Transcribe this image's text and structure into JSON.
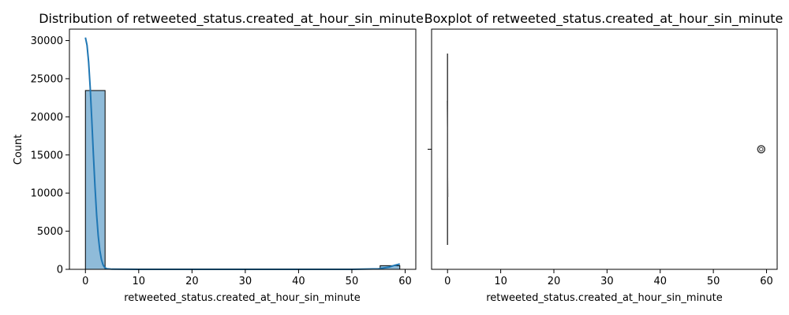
{
  "chart_data": [
    {
      "type": "bar",
      "title": "Distribution of retweeted_status.created_at_hour_sin_minute",
      "xlabel": "retweeted_status.created_at_hour_sin_minute",
      "ylabel": "Count",
      "xlim": [
        -3,
        62
      ],
      "ylim": [
        0,
        31500
      ],
      "xticks": [
        0,
        10,
        20,
        30,
        40,
        50,
        60
      ],
      "yticks": [
        0,
        5000,
        10000,
        15000,
        20000,
        25000,
        30000
      ],
      "grid": false,
      "bins": [
        {
          "x0": 0.0,
          "x1": 3.69,
          "count": 23450
        },
        {
          "x0": 3.69,
          "x1": 7.38,
          "count": 0
        },
        {
          "x0": 7.38,
          "x1": 11.06,
          "count": 0
        },
        {
          "x0": 11.06,
          "x1": 14.75,
          "count": 0
        },
        {
          "x0": 14.75,
          "x1": 18.44,
          "count": 0
        },
        {
          "x0": 18.44,
          "x1": 22.13,
          "count": 0
        },
        {
          "x0": 22.13,
          "x1": 25.81,
          "count": 0
        },
        {
          "x0": 25.81,
          "x1": 29.5,
          "count": 0
        },
        {
          "x0": 29.5,
          "x1": 33.19,
          "count": 0
        },
        {
          "x0": 33.19,
          "x1": 36.88,
          "count": 0
        },
        {
          "x0": 36.88,
          "x1": 40.56,
          "count": 0
        },
        {
          "x0": 40.56,
          "x1": 44.25,
          "count": 0
        },
        {
          "x0": 44.25,
          "x1": 47.94,
          "count": 0
        },
        {
          "x0": 47.94,
          "x1": 51.63,
          "count": 0
        },
        {
          "x0": 51.63,
          "x1": 55.31,
          "count": 0
        },
        {
          "x0": 55.31,
          "x1": 59.0,
          "count": 480
        }
      ],
      "kde": {
        "x": [
          0,
          0.3,
          0.6,
          0.9,
          1.2,
          1.5,
          1.8,
          2.1,
          2.4,
          2.7,
          3.0,
          3.3,
          3.6,
          4.0,
          5.0,
          10,
          20,
          30,
          40,
          50,
          55,
          57,
          58,
          59
        ],
        "y": [
          30400,
          29400,
          27200,
          23800,
          19500,
          15000,
          10800,
          7200,
          4400,
          2500,
          1300,
          600,
          250,
          80,
          20,
          0,
          0,
          0,
          0,
          0,
          60,
          300,
          520,
          700
        ]
      },
      "bar_color": "#1f77b4",
      "bar_alpha": 0.5,
      "line_color": "#1f77b4"
    },
    {
      "type": "box",
      "title": "Boxplot of retweeted_status.created_at_hour_sin_minute",
      "xlabel": "retweeted_status.created_at_hour_sin_minute",
      "xlim": [
        -3,
        62
      ],
      "xticks": [
        0,
        10,
        20,
        30,
        40,
        50,
        60
      ],
      "box": {
        "min": 0,
        "q1": 0,
        "median": 0,
        "q3": 0,
        "max": 0
      },
      "outliers": [
        59
      ],
      "color": "#1f77b4"
    }
  ]
}
